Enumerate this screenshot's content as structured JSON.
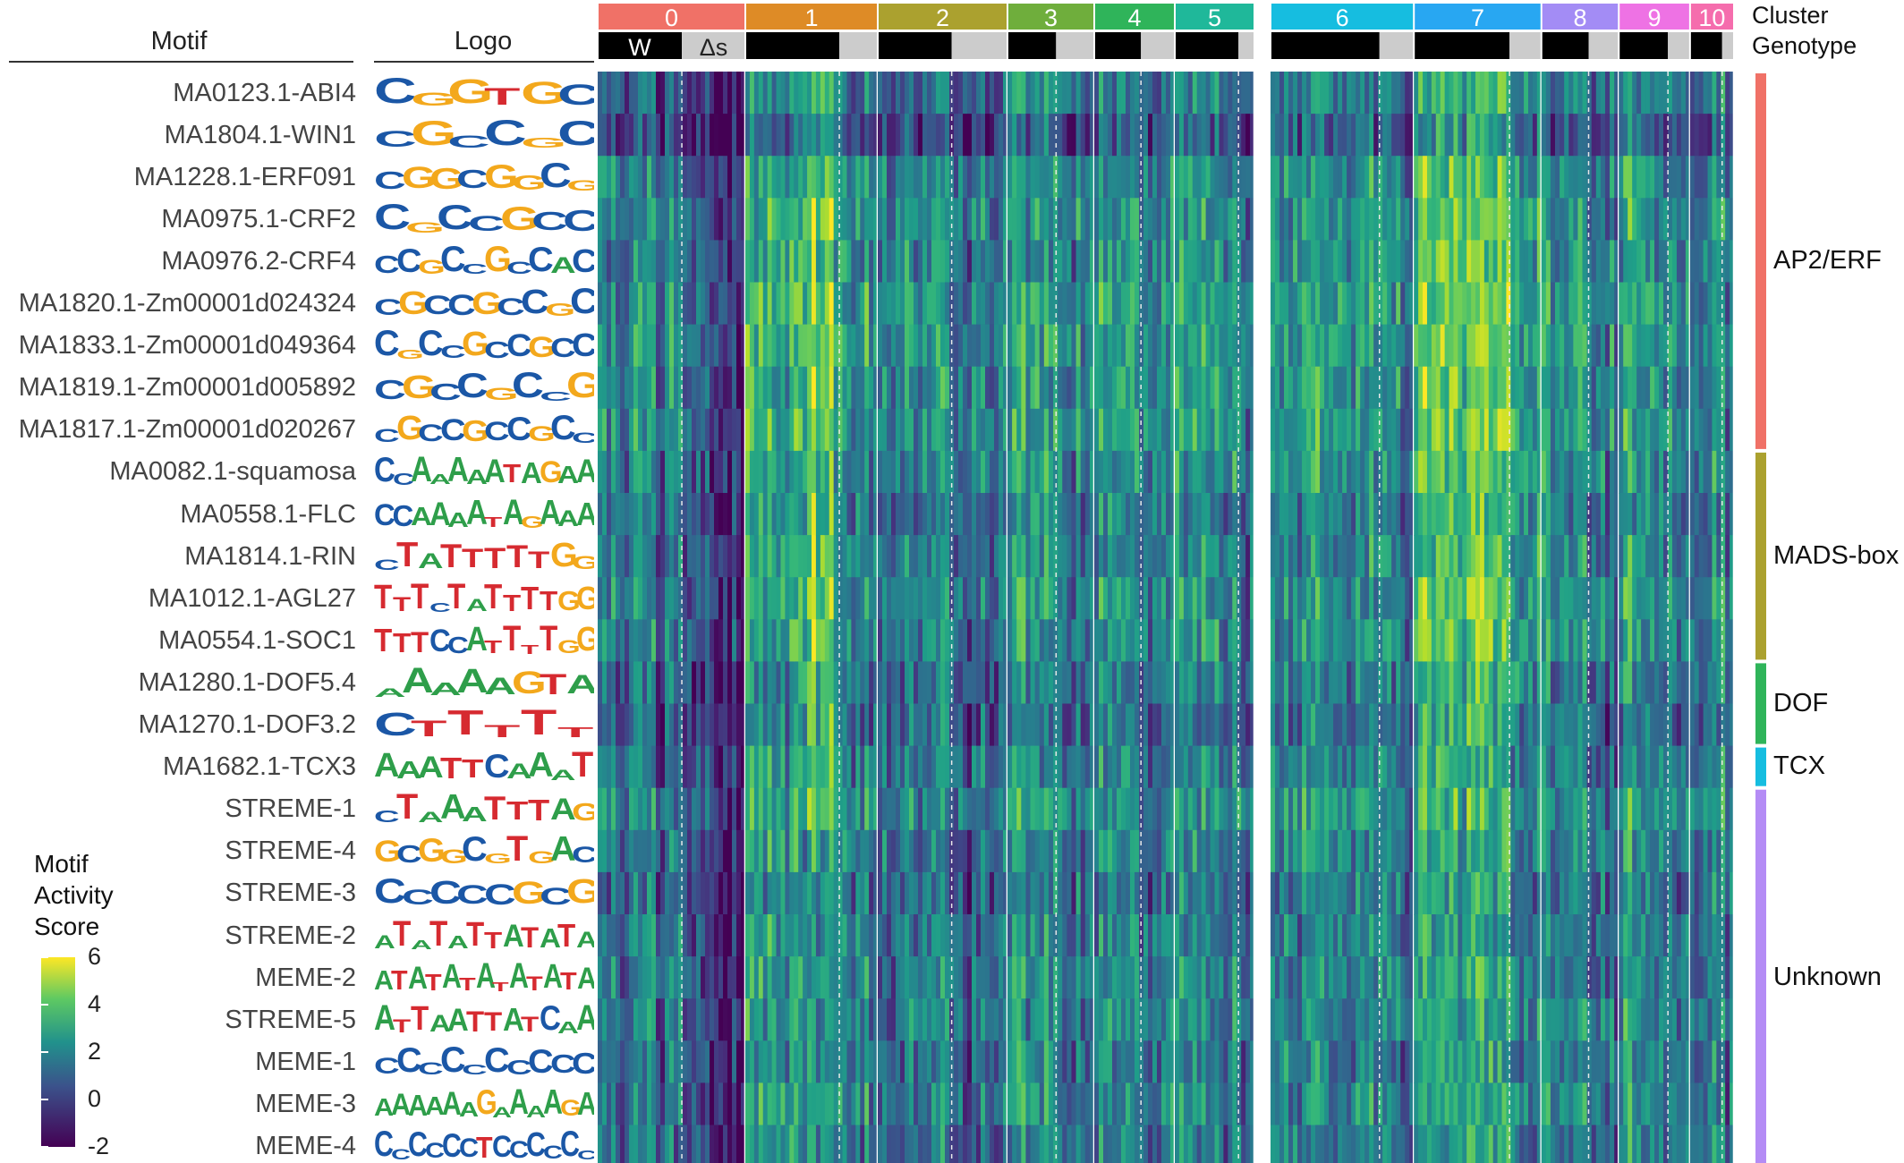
{
  "chart_data": {
    "type": "heatmap",
    "column_headers": {
      "motif": "Motif",
      "logo": "Logo"
    },
    "annotation_tracks": [
      "Cluster",
      "Genotype"
    ],
    "clusters": [
      {
        "label": "0",
        "color": "#f07167"
      },
      {
        "label": "1",
        "color": "#de8b26"
      },
      {
        "label": "2",
        "color": "#aba12f"
      },
      {
        "label": "3",
        "color": "#6fae3c"
      },
      {
        "label": "4",
        "color": "#2fb45a"
      },
      {
        "label": "5",
        "color": "#1fb89a"
      },
      {
        "label": "6",
        "color": "#16bde0"
      },
      {
        "label": "7",
        "color": "#28a7f2"
      },
      {
        "label": "8",
        "color": "#a38cf5"
      },
      {
        "label": "9",
        "color": "#ee72e4"
      },
      {
        "label": "10",
        "color": "#f56dad"
      }
    ],
    "genotypes": [
      {
        "label": "W",
        "color": "#000000"
      },
      {
        "label": "Δs",
        "color": "#cccccc"
      }
    ],
    "motifs": [
      {
        "name": "MA0123.1-ABI4",
        "logo": "CGGTGC",
        "logo_color": "#1b57a6",
        "family": "AP2/ERF",
        "level": 0.2
      },
      {
        "name": "MA1804.1-WIN1",
        "logo": "CGCCGC",
        "logo_color": "#1b57a6",
        "family": "AP2/ERF",
        "level": -0.3
      },
      {
        "name": "MA1228.1-ERF091",
        "logo": "CGGCGGCG",
        "logo_color": "#f3a81c",
        "family": "AP2/ERF",
        "level": 0.5
      },
      {
        "name": "MA0975.1-CRF2",
        "logo": "CGCCGCC",
        "logo_color": "#f3a81c",
        "family": "AP2/ERF",
        "level": 0.6
      },
      {
        "name": "MA0976.2-CRF4",
        "logo": "CCGCCGCCAC",
        "logo_color": "#f3a81c",
        "family": "AP2/ERF",
        "level": 0.5
      },
      {
        "name": "MA1820.1-Zm00001d024324",
        "logo": "CGCCGCCGC",
        "logo_color": "#1b57a6",
        "family": "AP2/ERF",
        "level": 0.7
      },
      {
        "name": "MA1833.1-Zm00001d049364",
        "logo": "CGCCGCCGCC",
        "logo_color": "#f3a81c",
        "family": "AP2/ERF",
        "level": 0.7
      },
      {
        "name": "MA1819.1-Zm00001d005892",
        "logo": "CGCCGCCG",
        "logo_color": "#1b57a6",
        "family": "AP2/ERF",
        "level": 0.6
      },
      {
        "name": "MA1817.1-Zm00001d020267",
        "logo": "CGCCGCCGCC",
        "logo_color": "#f3a81c",
        "family": "AP2/ERF",
        "level": 0.7
      },
      {
        "name": "MA0082.1-squamosa",
        "logo": "CCAAAAATAGAA",
        "logo_color": "#2e9e4a",
        "family": "MADS-box",
        "level": 0.5
      },
      {
        "name": "MA0558.1-FLC",
        "logo": "CCAAAATAGAAA",
        "logo_color": "#2e9e4a",
        "family": "MADS-box",
        "level": 0.3
      },
      {
        "name": "MA1814.1-RIN",
        "logo": "CTATTTTTGG",
        "logo_color": "#d62a30",
        "family": "MADS-box",
        "level": 0.4
      },
      {
        "name": "MA1012.1-AGL27",
        "logo": "TTTCTATTTTGG",
        "logo_color": "#d62a30",
        "family": "MADS-box",
        "level": 0.5
      },
      {
        "name": "MA0554.1-SOC1",
        "logo": "TTTCCATTTTGG",
        "logo_color": "#d62a30",
        "family": "MADS-box",
        "level": 0.5
      },
      {
        "name": "MA1280.1-DOF5.4",
        "logo": "AAAAAGTA",
        "logo_color": "#2e9e4a",
        "family": "DOF",
        "level": 0.2
      },
      {
        "name": "MA1270.1-DOF3.2",
        "logo": "CTTTTT",
        "logo_color": "#d62a30",
        "family": "DOF",
        "level": 0.1
      },
      {
        "name": "MA1682.1-TCX3",
        "logo": "AAATTCAAAT",
        "logo_color": "#d62a30",
        "family": "TCX",
        "level": 0.3
      },
      {
        "name": "STREME-1",
        "logo": "CTAAATTTAG",
        "logo_color": "#2e9e4a",
        "family": "Unknown",
        "level": 0.6
      },
      {
        "name": "STREME-4",
        "logo": "GCGGCGTGAC",
        "logo_color": "#1b57a6",
        "family": "Unknown",
        "level": 0.4
      },
      {
        "name": "STREME-3",
        "logo": "CCCCCGCG",
        "logo_color": "#1b57a6",
        "family": "Unknown",
        "level": 0.2
      },
      {
        "name": "STREME-2",
        "logo": "ATATATTATATA",
        "logo_color": "#2e9e4a",
        "family": "Unknown",
        "level": 0.3
      },
      {
        "name": "MEME-2",
        "logo": "ATATATATATATA",
        "logo_color": "#2e9e4a",
        "family": "Unknown",
        "level": 0.4
      },
      {
        "name": "STREME-5",
        "logo": "ATTAATTATCAA",
        "logo_color": "#2e9e4a",
        "family": "Unknown",
        "level": 0.4
      },
      {
        "name": "MEME-1",
        "logo": "CCCCCCCCCC",
        "logo_color": "#1b57a6",
        "family": "Unknown",
        "level": 0.3
      },
      {
        "name": "MEME-3",
        "logo": "AAAAAAGAAAAGA",
        "logo_color": "#2e9e4a",
        "family": "Unknown",
        "level": 0.4
      },
      {
        "name": "MEME-4",
        "logo": "CCCCCCTCCCCCC",
        "logo_color": "#1b57a6",
        "family": "Unknown",
        "level": 0.2
      }
    ],
    "families": [
      {
        "name": "AP2/ERF",
        "color": "#f07167"
      },
      {
        "name": "MADS-box",
        "color": "#aba12f"
      },
      {
        "name": "DOF",
        "color": "#2fb45a"
      },
      {
        "name": "TCX",
        "color": "#16bde0"
      },
      {
        "name": "Unknown",
        "color": "#b48cf5"
      }
    ],
    "legend": {
      "title_lines": [
        "Motif",
        "Activity",
        "Score"
      ],
      "ticks": [
        "6",
        "4",
        "2",
        "0",
        "-2"
      ],
      "range": [
        -2,
        6
      ],
      "colormap": "viridis"
    }
  }
}
